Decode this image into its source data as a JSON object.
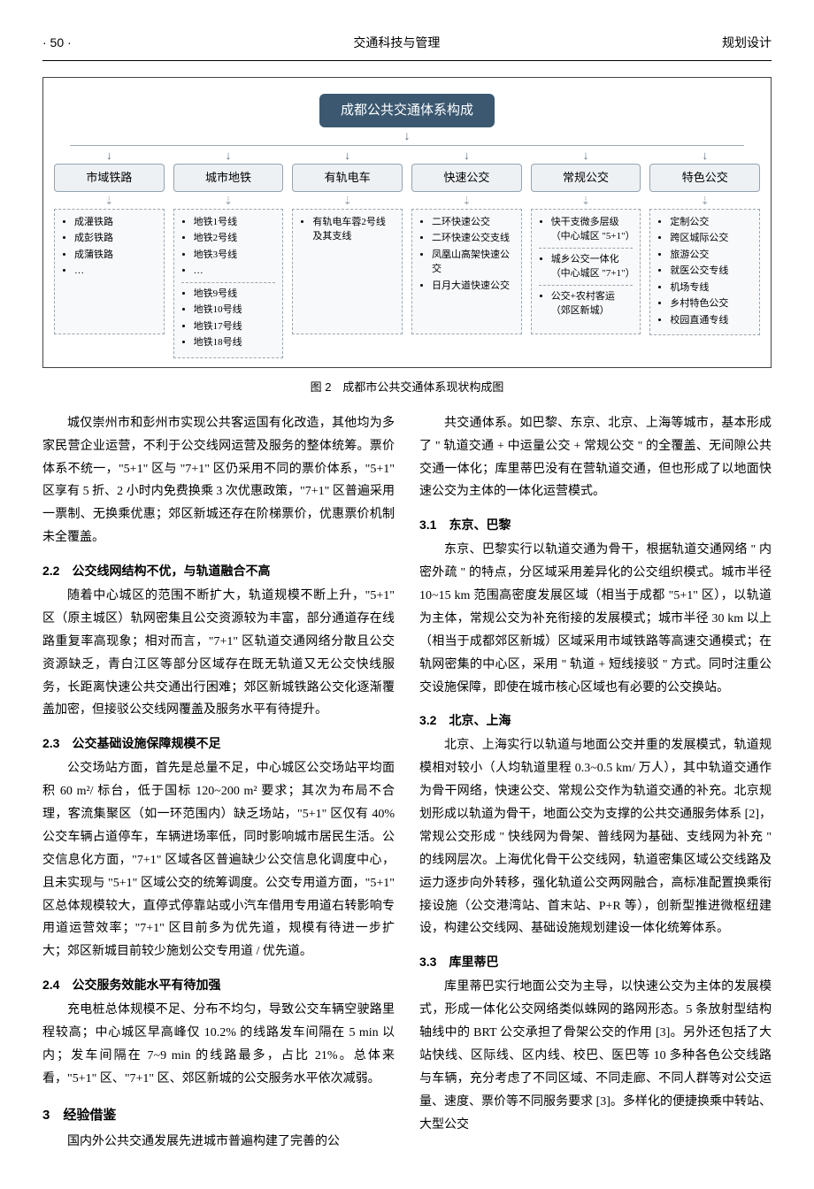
{
  "header": {
    "left": "· 50 ·",
    "center": "交通科技与管理",
    "right": "规划设计"
  },
  "diagram": {
    "root": "成都公共交通体系构成",
    "columns": [
      {
        "head": "市域铁路",
        "items_a": [
          "成灌铁路",
          "成彭铁路",
          "成蒲铁路",
          "…"
        ],
        "items_b": []
      },
      {
        "head": "城市地铁",
        "items_a": [
          "地铁1号线",
          "地铁2号线",
          "地铁3号线",
          "…"
        ],
        "items_b": [
          "地铁9号线",
          "地铁10号线",
          "地铁17号线",
          "地铁18号线"
        ]
      },
      {
        "head": "有轨电车",
        "items_a": [
          "有轨电车蓉2号线及其支线"
        ],
        "items_b": []
      },
      {
        "head": "快速公交",
        "items_a": [
          "二环快速公交",
          "二环快速公交支线",
          "凤凰山高架快速公交",
          "日月大道快速公交"
        ],
        "items_b": []
      },
      {
        "head": "常规公交",
        "items_a": [
          "快干支微多层级（中心城区 \"5+1\"）"
        ],
        "items_b": [
          "城乡公交一体化（中心城区 \"7+1\"）"
        ],
        "items_c": [
          "公交+农村客运（郊区新城）"
        ]
      },
      {
        "head": "特色公交",
        "items_a": [
          "定制公交",
          "跨区城际公交",
          "旅游公交",
          "就医公交专线",
          "机场专线",
          "乡村特色公交",
          "校园直通专线"
        ],
        "items_b": []
      }
    ]
  },
  "figCaption": "图 2　成都市公共交通体系现状构成图",
  "left": {
    "p0": "城仅崇州市和彭州市实现公共客运国有化改造，其他均为多家民营企业运营，不利于公交线网运营及服务的整体统筹。票价体系不统一，\"5+1\" 区与 \"7+1\" 区仍采用不同的票价体系，\"5+1\" 区享有 5 折、2 小时内免费换乘 3 次优惠政策，\"7+1\" 区普遍采用一票制、无换乘优惠；郊区新城还存在阶梯票价，优惠票价机制未全覆盖。",
    "h22": "2.2　公交线网结构不优，与轨道融合不高",
    "p22": "随着中心城区的范围不断扩大，轨道规模不断上升，\"5+1\" 区（原主城区）轨网密集且公交资源较为丰富，部分通道存在线路重复率高现象；相对而言，\"7+1\" 区轨道交通网络分散且公交资源缺乏，青白江区等部分区域存在既无轨道又无公交快线服务，长距离快速公共交通出行困难；郊区新城铁路公交化逐渐覆盖加密，但接驳公交线网覆盖及服务水平有待提升。",
    "h23": "2.3　公交基础设施保障规模不足",
    "p23": "公交场站方面，首先是总量不足，中心城区公交场站平均面积 60 m²/ 标台，低于国标 120~200 m² 要求；其次为布局不合理，客流集聚区（如一环范围内）缺乏场站，\"5+1\" 区仅有 40% 公交车辆占道停车，车辆进场率低，同时影响城市居民生活。公交信息化方面，\"7+1\" 区域各区普遍缺少公交信息化调度中心，且未实现与 \"5+1\" 区域公交的统筹调度。公交专用道方面，\"5+1\" 区总体规模较大，直停式停靠站或小汽车借用专用道右转影响专用道运营效率；\"7+1\" 区目前多为优先道，规模有待进一步扩大；郊区新城目前较少施划公交专用道 / 优先道。",
    "h24": "2.4　公交服务效能水平有待加强",
    "p24": "充电桩总体规模不足、分布不均匀，导致公交车辆空驶路里程较高；中心城区早高峰仅 10.2% 的线路发车间隔在 5 min 以内；发车间隔在 7~9 min 的线路最多，占比 21%。总体来看，\"5+1\" 区、\"7+1\" 区、郊区新城的公交服务水平依次减弱。",
    "h3": "3　经验借鉴",
    "p3": "国内外公共交通发展先进城市普遍构建了完善的公"
  },
  "right": {
    "p0": "共交通体系。如巴黎、东京、北京、上海等城市，基本形成了 \" 轨道交通 + 中运量公交 + 常规公交 \" 的全覆盖、无间隙公共交通一体化；库里蒂巴没有在营轨道交通，但也形成了以地面快速公交为主体的一体化运营模式。",
    "h31": "3.1　东京、巴黎",
    "p31": "东京、巴黎实行以轨道交通为骨干，根据轨道交通网络 \" 内密外疏 \" 的特点，分区域采用差异化的公交组织模式。城市半径 10~15 km 范围高密度发展区域（相当于成都 \"5+1\" 区），以轨道为主体，常规公交为补充衔接的发展模式；城市半径 30 km 以上（相当于成都郊区新城）区域采用市域铁路等高速交通模式；在轨网密集的中心区，采用 \" 轨道 + 短线接驳 \" 方式。同时注重公交设施保障，即使在城市核心区域也有必要的公交换站。",
    "h32": "3.2　北京、上海",
    "p32": "北京、上海实行以轨道与地面公交并重的发展模式，轨道规模相对较小（人均轨道里程 0.3~0.5 km/ 万人），其中轨道交通作为骨干网络，快速公交、常规公交作为轨道交通的补充。北京规划形成以轨道为骨干，地面公交为支撑的公共交通服务体系 [2]，常规公交形成 \" 快线网为骨架、普线网为基础、支线网为补充 \" 的线网层次。上海优化骨干公交线网，轨道密集区域公交线路及运力逐步向外转移，强化轨道公交两网融合，高标准配置换乘衔接设施（公交港湾站、首末站、P+R 等），创新型推进微枢纽建设，构建公交线网、基础设施规划建设一体化统筹体系。",
    "h33": "3.3　库里蒂巴",
    "p33": "库里蒂巴实行地面公交为主导，以快速公交为主体的发展模式，形成一体化公交网络类似蛛网的路网形态。5 条放射型结构轴线中的 BRT 公交承担了骨架公交的作用 [3]。另外还包括了大站快线、区际线、区内线、校巴、医巴等 10 多种各色公交线路与车辆，充分考虑了不同区域、不同走廊、不同人群等对公交运量、速度、票价等不同服务要求 [3]。多样化的便捷换乘中转站、大型公交"
  }
}
